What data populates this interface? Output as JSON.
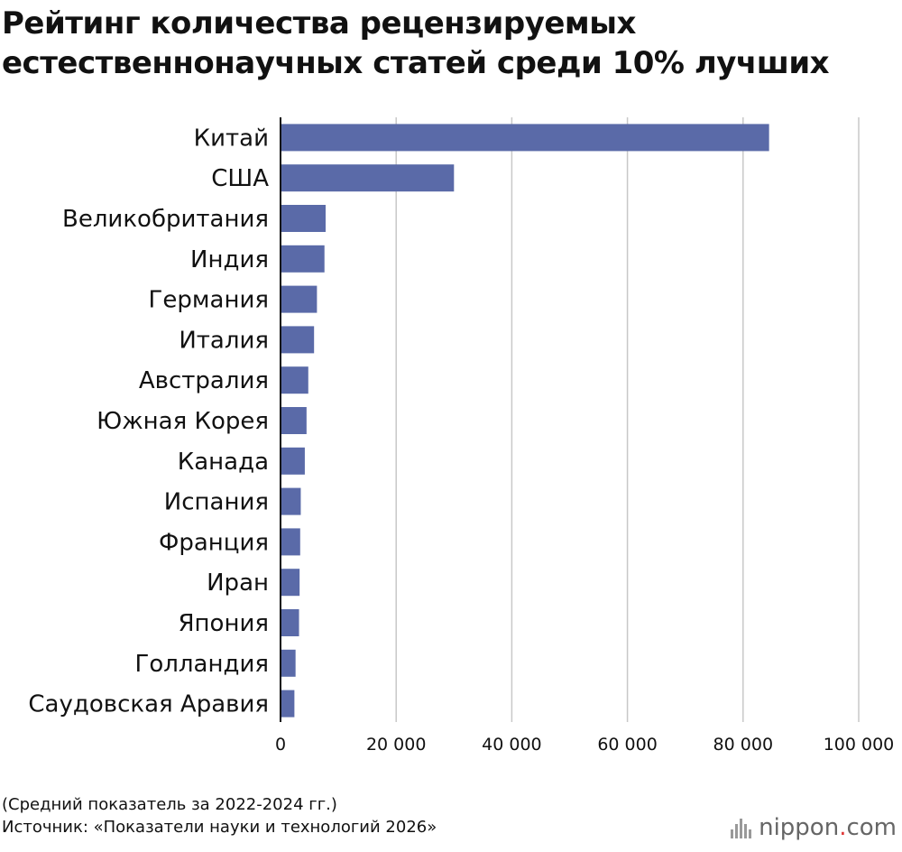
{
  "title": "Рейтинг количества рецензируемых естественнонаучных статей среди 10% лучших",
  "notes": {
    "period": "(Средний показатель за 2022-2024 гг.)",
    "source": "Источник: «Показатели науки и технологий 2026»"
  },
  "brand": {
    "name": "nippon",
    "dot": ".",
    "suffix": "com",
    "icon": "nippon-bars-logo-icon"
  },
  "colors": {
    "bar": "#5a6aa8",
    "grid": "#c8c8c8",
    "axis": "#111111"
  },
  "chart_data": {
    "type": "bar",
    "orientation": "horizontal",
    "categories": [
      "Китай",
      "США",
      "Великобритания",
      "Индия",
      "Германия",
      "Италия",
      "Австралия",
      "Южная Корея",
      "Канада",
      "Испания",
      "Франция",
      "Иран",
      "Япония",
      "Голландия",
      "Саудовская Аравия"
    ],
    "values": [
      84500,
      30000,
      7800,
      7600,
      6300,
      5800,
      4800,
      4500,
      4200,
      3500,
      3400,
      3300,
      3200,
      2600,
      2400
    ],
    "xlim": [
      0,
      100000
    ],
    "xticks": [
      0,
      20000,
      40000,
      60000,
      80000,
      100000
    ],
    "xtick_labels": [
      "0",
      "20 000",
      "40 000",
      "60 000",
      "80 000",
      "100 000"
    ],
    "grid": true,
    "legend": "none"
  }
}
